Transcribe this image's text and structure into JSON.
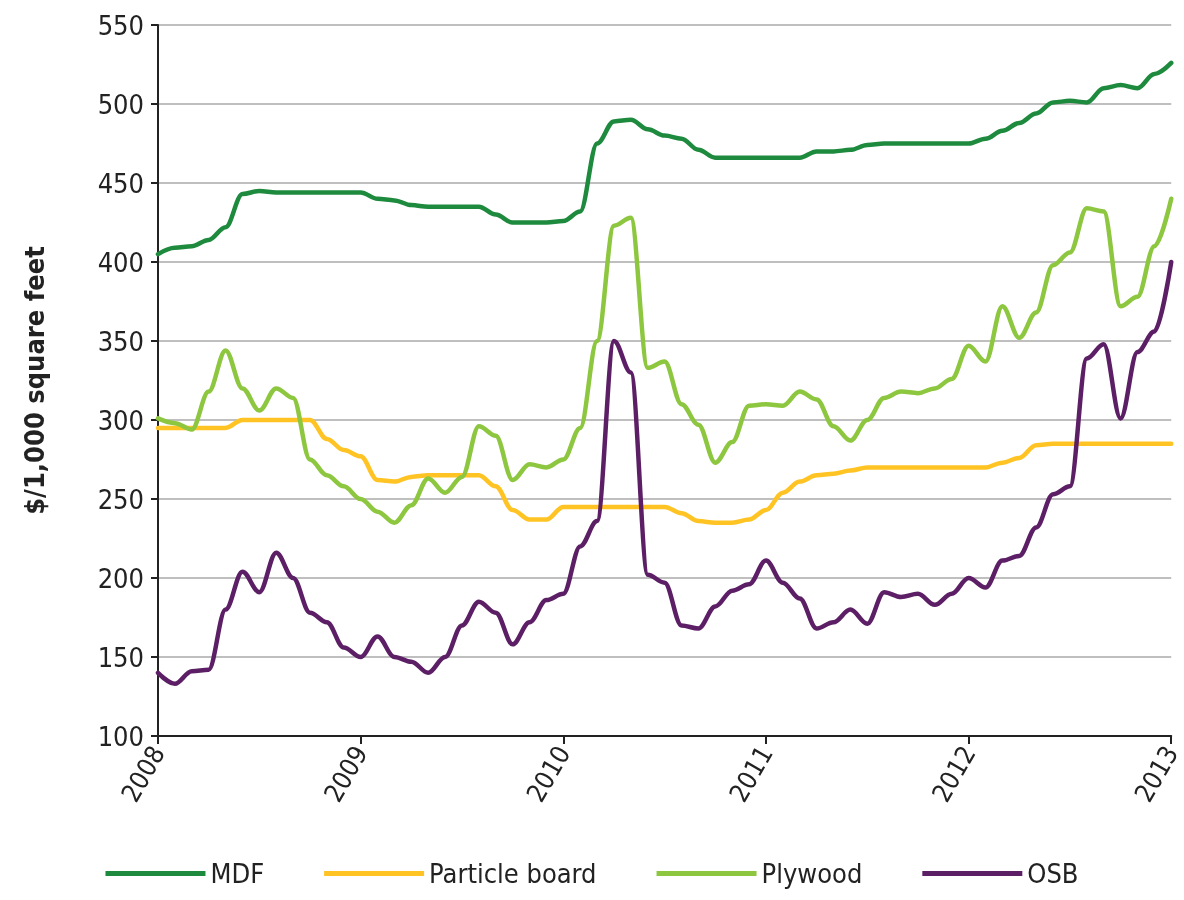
{
  "chart_data": {
    "type": "line",
    "ylabel": "$/1,000 square feet",
    "x": [
      "2008-01",
      "2008-02",
      "2008-03",
      "2008-04",
      "2008-05",
      "2008-06",
      "2008-07",
      "2008-08",
      "2008-09",
      "2008-10",
      "2008-11",
      "2008-12",
      "2009-01",
      "2009-02",
      "2009-03",
      "2009-04",
      "2009-05",
      "2009-06",
      "2009-07",
      "2009-08",
      "2009-09",
      "2009-10",
      "2009-11",
      "2009-12",
      "2010-01",
      "2010-02",
      "2010-03",
      "2010-04",
      "2010-05",
      "2010-06",
      "2010-07",
      "2010-08",
      "2010-09",
      "2010-10",
      "2010-11",
      "2010-12",
      "2011-01",
      "2011-02",
      "2011-03",
      "2011-04",
      "2011-05",
      "2011-06",
      "2011-07",
      "2011-08",
      "2011-09",
      "2011-10",
      "2011-11",
      "2011-12",
      "2012-01",
      "2012-02",
      "2012-03",
      "2012-04",
      "2012-05",
      "2012-06",
      "2012-07",
      "2012-08",
      "2012-09",
      "2012-10",
      "2012-11",
      "2012-12",
      "2013-01"
    ],
    "series": [
      {
        "name": "MDF",
        "color": "#1e8a3e",
        "values": [
          405,
          409,
          410,
          414,
          422,
          443,
          445,
          444,
          444,
          444,
          444,
          444,
          444,
          440,
          439,
          436,
          435,
          435,
          435,
          435,
          430,
          425,
          425,
          425,
          426,
          432,
          475,
          489,
          490,
          484,
          480,
          478,
          471,
          466,
          466,
          466,
          466,
          466,
          466,
          470,
          470,
          471,
          474,
          475,
          475,
          475,
          475,
          475,
          475,
          478,
          483,
          488,
          494,
          501,
          502,
          501,
          510,
          512,
          510,
          519,
          526
        ]
      },
      {
        "name": "Particle board",
        "color": "#ffc423",
        "values": [
          295,
          295,
          295,
          295,
          295,
          300,
          300,
          300,
          300,
          300,
          288,
          281,
          277,
          262,
          261,
          264,
          265,
          265,
          265,
          265,
          258,
          243,
          237,
          237,
          245,
          245,
          245,
          245,
          245,
          245,
          245,
          241,
          236,
          235,
          235,
          237,
          243,
          254,
          261,
          265,
          266,
          268,
          270,
          270,
          270,
          270,
          270,
          270,
          270,
          270,
          273,
          276,
          284,
          285,
          285,
          285,
          285,
          285,
          285,
          285,
          285
        ]
      },
      {
        "name": "Plywood",
        "color": "#8dc63f",
        "values": [
          301,
          298,
          294,
          318,
          344,
          320,
          306,
          320,
          314,
          275,
          265,
          258,
          250,
          242,
          235,
          246,
          263,
          254,
          264,
          296,
          290,
          262,
          272,
          270,
          275,
          295,
          350,
          423,
          428,
          333,
          337,
          310,
          297,
          273,
          286,
          309,
          310,
          309,
          318,
          313,
          296,
          287,
          300,
          314,
          318,
          317,
          320,
          326,
          347,
          337,
          372,
          352,
          368,
          398,
          406,
          434,
          432,
          372,
          378,
          410,
          440
        ]
      },
      {
        "name": "OSB",
        "color": "#5c1f66",
        "values": [
          140,
          133,
          141,
          142,
          180,
          204,
          191,
          216,
          200,
          178,
          172,
          156,
          150,
          163,
          150,
          147,
          140,
          150,
          170,
          185,
          178,
          158,
          172,
          186,
          190,
          220,
          236,
          350,
          330,
          202,
          197,
          170,
          168,
          182,
          192,
          196,
          211,
          197,
          187,
          168,
          172,
          180,
          171,
          191,
          188,
          190,
          183,
          190,
          200,
          194,
          211,
          214,
          232,
          253,
          258,
          339,
          348,
          301,
          343,
          356,
          400
        ]
      }
    ],
    "xlim": [
      "2008",
      "2013"
    ],
    "xticks": [
      "2008",
      "2009",
      "2010",
      "2011",
      "2012",
      "2013"
    ],
    "ylim": [
      100,
      550
    ],
    "yticks": [
      100,
      150,
      200,
      250,
      300,
      350,
      400,
      450,
      500,
      550
    ],
    "grid": "y",
    "legend": "bottom",
    "marker": "none",
    "line_style": "solid"
  }
}
